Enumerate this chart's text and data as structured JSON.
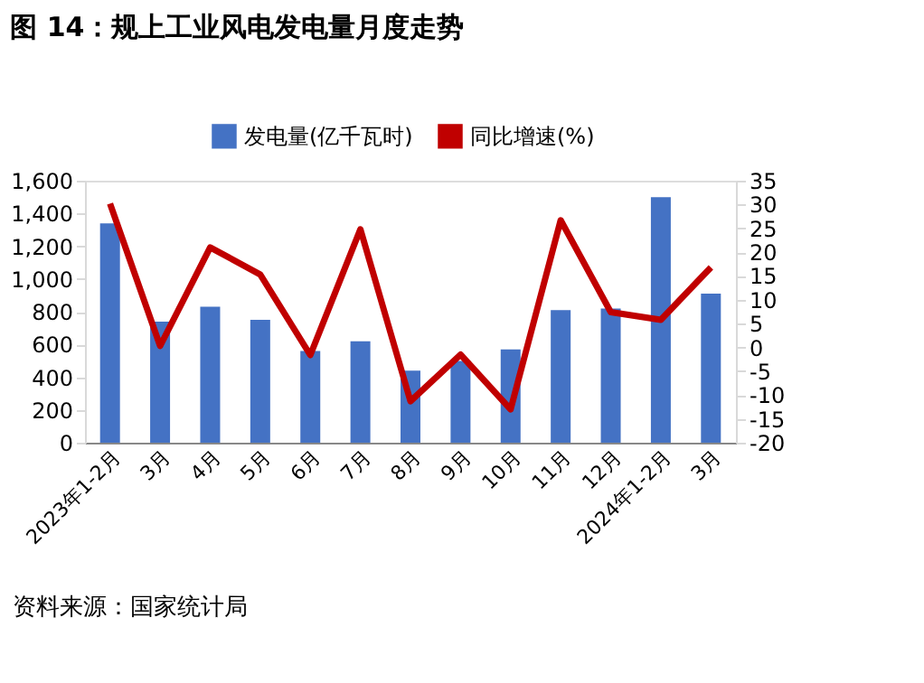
{
  "chart_data": {
    "type": "bar",
    "title": "图 14：规上工业风电发电量月度走势",
    "categories": [
      "2023年1-2月",
      "3月",
      "4月",
      "5月",
      "6月",
      "7月",
      "8月",
      "9月",
      "10月",
      "11月",
      "12月",
      "2024年1-2月",
      "3月"
    ],
    "series": [
      {
        "name": "发电量(亿千瓦时)",
        "color": "#4472c4",
        "values": [
          1340,
          740,
          830,
          750,
          560,
          620,
          440,
          500,
          570,
          810,
          820,
          1500,
          910
        ]
      },
      {
        "name": "同比增速(%)",
        "type": "line",
        "axis": "y2",
        "color": "#c00000",
        "values": [
          30.2,
          0.3,
          21,
          15.3,
          -1.6,
          24.8,
          -11.3,
          -1.5,
          -13,
          26.7,
          7.4,
          5.8,
          16.8
        ]
      }
    ],
    "ylim": [
      0,
      1600
    ],
    "yticks": [
      {
        "value": 0,
        "label": "0"
      },
      {
        "value": 200,
        "label": "200"
      },
      {
        "value": 400,
        "label": "400"
      },
      {
        "value": 600,
        "label": "600"
      },
      {
        "value": 800,
        "label": "800"
      },
      {
        "value": 1000,
        "label": "1,000"
      },
      {
        "value": 1200,
        "label": "1,200"
      },
      {
        "value": 1400,
        "label": "1,400"
      },
      {
        "value": 1600,
        "label": "1,600"
      }
    ],
    "y2lim": [
      -20,
      35
    ],
    "y2ticks": [
      -20,
      -15,
      -10,
      -5,
      0,
      5,
      10,
      15,
      20,
      25,
      30,
      35
    ],
    "legend": "top",
    "grid": false,
    "marker": "none",
    "annotations": [
      "资料来源：国家统计局"
    ]
  }
}
